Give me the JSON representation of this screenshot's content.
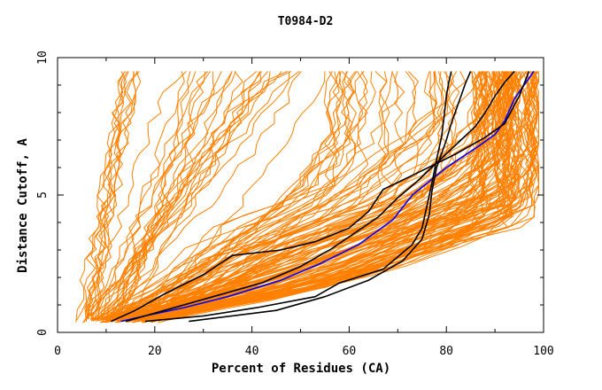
{
  "chart_data": {
    "type": "line",
    "title": "T0984-D2",
    "xlabel": "Percent of Residues (CA)",
    "ylabel": "Distance Cutoff, A",
    "xlim": [
      0,
      100
    ],
    "ylim": [
      0,
      10
    ],
    "x_ticks": [
      "0",
      "20",
      "40",
      "60",
      "80",
      "100"
    ],
    "y_ticks": [
      "0",
      "5",
      "10"
    ],
    "grid": false,
    "colors": {
      "background_models": "#ff8000",
      "highlight_black": "#000000",
      "highlight_blue": "#0000ff"
    },
    "series": [
      {
        "color": "#0000ff",
        "x": [
          13,
          18,
          26,
          35,
          46,
          54,
          62,
          69,
          73,
          80,
          86,
          90,
          92,
          94,
          96,
          98
        ],
        "y": [
          0.4,
          0.6,
          0.9,
          1.3,
          1.9,
          2.5,
          3.2,
          4.1,
          5.0,
          6.0,
          6.7,
          7.2,
          7.7,
          8.5,
          9.0,
          9.5
        ]
      },
      {
        "color": "#000000",
        "x": [
          11,
          16,
          22,
          30,
          36,
          46,
          53,
          60,
          64,
          67,
          74,
          82,
          88,
          92,
          95,
          97
        ],
        "y": [
          0.4,
          0.8,
          1.4,
          2.1,
          2.8,
          3.0,
          3.3,
          3.8,
          4.4,
          5.2,
          5.8,
          6.5,
          7.1,
          7.6,
          8.6,
          9.5
        ]
      },
      {
        "color": "#000000",
        "x": [
          14,
          22,
          32,
          42,
          50,
          56,
          61,
          66,
          70,
          74,
          77,
          80,
          83,
          86,
          88,
          90,
          92,
          94
        ],
        "y": [
          0.4,
          0.8,
          1.3,
          1.8,
          2.4,
          3.0,
          3.6,
          4.2,
          4.9,
          5.5,
          6.0,
          6.5,
          7.0,
          7.5,
          8.0,
          8.6,
          9.1,
          9.5
        ]
      },
      {
        "color": "#000000",
        "x": [
          18,
          30,
          41,
          53,
          58,
          67,
          73,
          75,
          76,
          77,
          78,
          79,
          79.5,
          80,
          80.5,
          81
        ],
        "y": [
          0.4,
          0.6,
          0.9,
          1.3,
          1.8,
          2.3,
          3.2,
          3.8,
          4.6,
          5.4,
          6.3,
          7.1,
          7.8,
          8.6,
          9.1,
          9.5
        ]
      },
      {
        "color": "#000000",
        "x": [
          27,
          45,
          55,
          64,
          71,
          75,
          76.5,
          77,
          78,
          79,
          80,
          81,
          82,
          83,
          84,
          85
        ],
        "y": [
          0.4,
          0.8,
          1.3,
          1.9,
          2.6,
          3.4,
          4.3,
          5.1,
          6.0,
          6.5,
          7.0,
          7.6,
          8.1,
          8.6,
          9.1,
          9.5
        ]
      }
    ]
  }
}
